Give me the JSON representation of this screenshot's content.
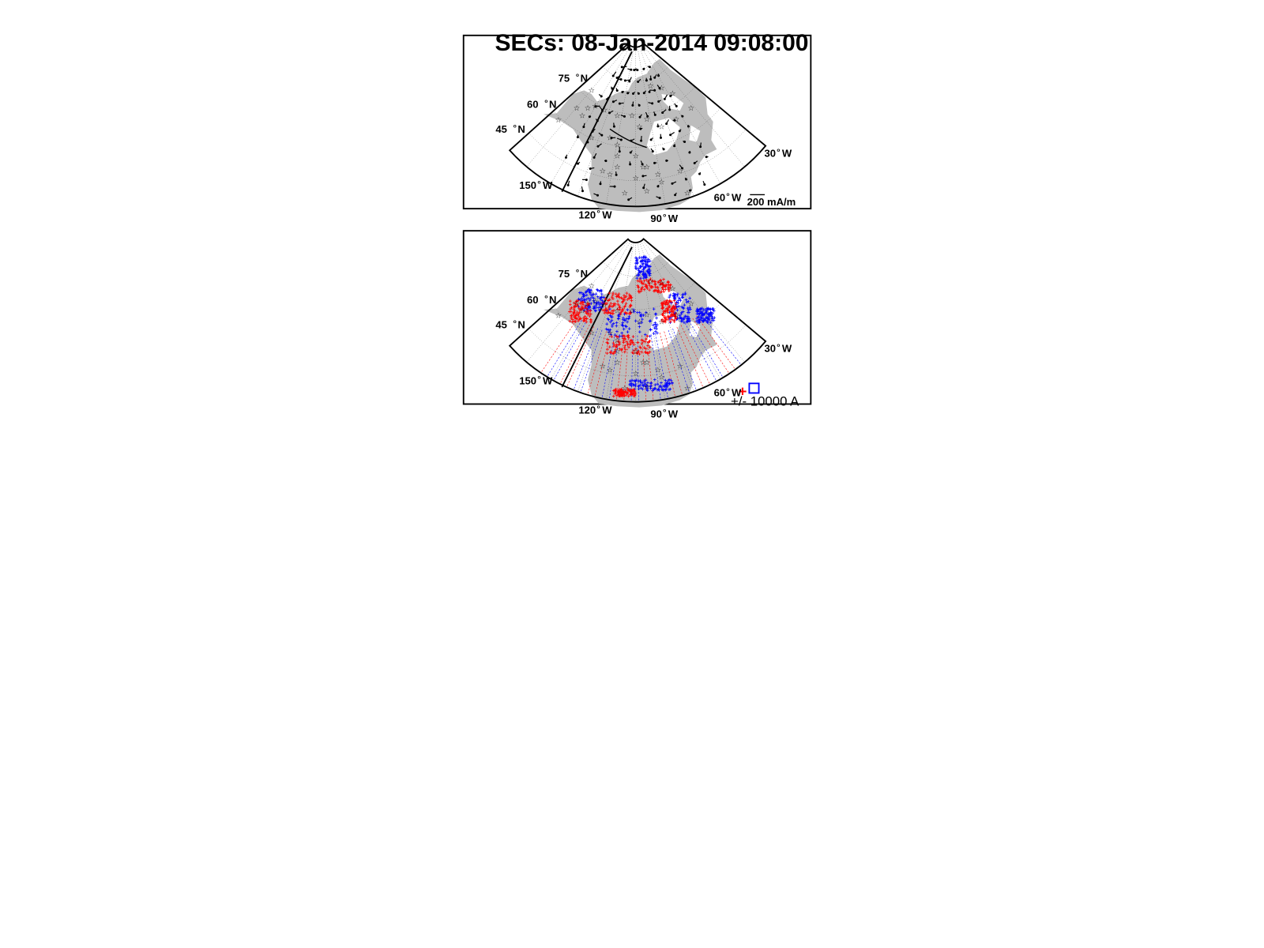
{
  "title": "SECs: 08-Jan-2014 09:08:00",
  "colors": {
    "land": "#bdbdbd",
    "frame": "#000000",
    "positive": "#ff0000",
    "negative": "#0000ff",
    "graticule": "#555555"
  },
  "lat_labels": [
    {
      "value": "75",
      "unit": "N"
    },
    {
      "value": "60",
      "unit": "N"
    },
    {
      "value": "45",
      "unit": "N"
    }
  ],
  "lon_labels": [
    {
      "value": "150",
      "unit": "W"
    },
    {
      "value": "120",
      "unit": "W"
    },
    {
      "value": "90",
      "unit": "W"
    },
    {
      "value": "60",
      "unit": "W"
    },
    {
      "value": "30",
      "unit": "W"
    }
  ],
  "top_panel": {
    "scale_value": "200",
    "scale_unit": "mA/m",
    "marker": "station-star",
    "vector_marker": "vector-dot"
  },
  "bottom_panel": {
    "legend_text": "+/- 10000 A",
    "positive_marker": "plus",
    "negative_marker": "square"
  }
}
